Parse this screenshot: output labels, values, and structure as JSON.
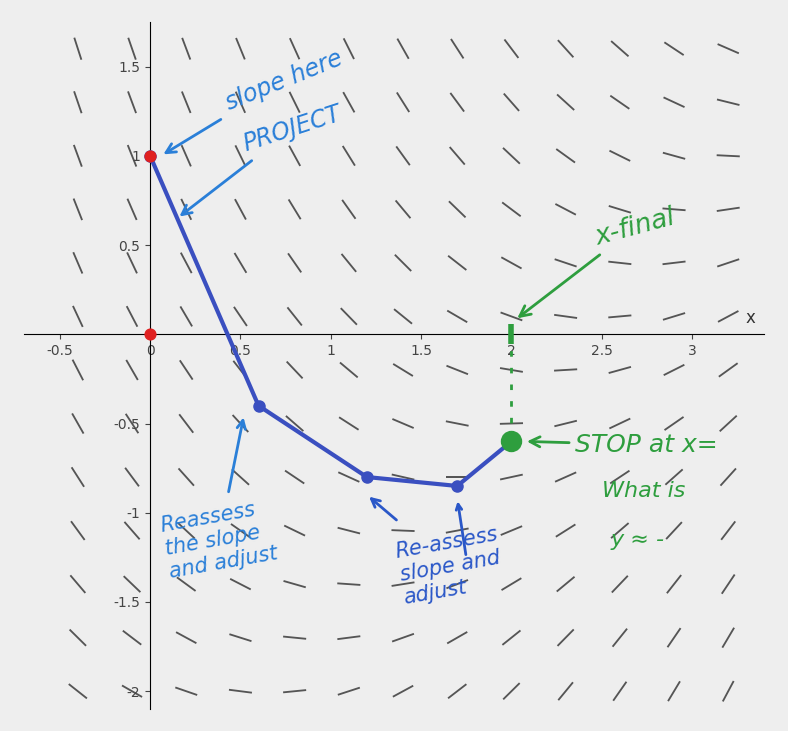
{
  "chart_data": {
    "type": "slope_field",
    "x_label": "x",
    "xlim": [
      -0.7,
      3.4
    ],
    "ylim": [
      -2.1,
      1.75
    ],
    "xticks": [
      -0.5,
      0,
      0.5,
      1,
      1.5,
      2,
      2.5,
      3
    ],
    "yticks": [
      -2,
      -1.5,
      -1,
      -0.5,
      0.5,
      1,
      1.5
    ],
    "grid": false,
    "slope_field": {
      "color": "#555555",
      "x": [
        -0.4,
        -0.1,
        0.2,
        0.5,
        0.8,
        1.1,
        1.4,
        1.7,
        2.0,
        2.3,
        2.6,
        2.9,
        3.2
      ],
      "y": [
        -2.0,
        -1.7,
        -1.4,
        -1.1,
        -0.8,
        -0.5,
        -0.2,
        0.1,
        0.4,
        0.7,
        1.0,
        1.3,
        1.6
      ],
      "slopes": [
        [
          -0.8,
          -0.58,
          -0.35,
          -0.13,
          0.1,
          0.33,
          0.55,
          0.78,
          1.0,
          1.23,
          1.45,
          1.68,
          1.9
        ],
        [
          -1.0,
          -0.77,
          -0.55,
          -0.32,
          -0.1,
          0.13,
          0.36,
          0.58,
          0.81,
          1.03,
          1.26,
          1.48,
          1.71
        ],
        [
          -1.19,
          -0.97,
          -0.74,
          -0.52,
          -0.29,
          -0.07,
          0.16,
          0.39,
          0.61,
          0.84,
          1.06,
          1.29,
          1.51
        ],
        [
          -1.39,
          -1.16,
          -0.94,
          -0.71,
          -0.49,
          -0.26,
          -0.04,
          0.19,
          0.42,
          0.64,
          0.87,
          1.09,
          1.32
        ],
        [
          -1.58,
          -1.36,
          -1.13,
          -0.91,
          -0.68,
          -0.46,
          -0.23,
          0.0,
          0.22,
          0.45,
          0.67,
          0.9,
          1.12
        ],
        [
          -1.78,
          -1.55,
          -1.33,
          -1.1,
          -0.88,
          -0.65,
          -0.43,
          -0.2,
          0.03,
          0.25,
          0.48,
          0.7,
          0.93
        ],
        [
          -1.97,
          -1.75,
          -1.52,
          -1.3,
          -1.07,
          -0.85,
          -0.62,
          -0.4,
          -0.17,
          0.06,
          0.28,
          0.51,
          0.73
        ],
        [
          -2.17,
          -1.94,
          -1.72,
          -1.49,
          -1.27,
          -1.04,
          -0.82,
          -0.59,
          -0.37,
          -0.14,
          0.09,
          0.31,
          0.54
        ],
        [
          -2.36,
          -2.14,
          -1.91,
          -1.69,
          -1.46,
          -1.24,
          -1.01,
          -0.79,
          -0.56,
          -0.34,
          -0.11,
          0.12,
          0.34
        ],
        [
          -2.56,
          -2.33,
          -2.11,
          -1.88,
          -1.66,
          -1.43,
          -1.21,
          -0.98,
          -0.76,
          -0.53,
          -0.31,
          -0.08,
          0.15
        ],
        [
          -2.75,
          -2.53,
          -2.3,
          -2.08,
          -1.85,
          -1.63,
          -1.4,
          -1.18,
          -0.95,
          -0.73,
          -0.5,
          -0.28,
          -0.05
        ],
        [
          -2.95,
          -2.72,
          -2.5,
          -2.27,
          -2.05,
          -1.82,
          -1.6,
          -1.37,
          -1.15,
          -0.92,
          -0.7,
          -0.47,
          -0.25
        ],
        [
          -3.14,
          -2.92,
          -2.69,
          -2.47,
          -2.24,
          -2.02,
          -1.79,
          -1.57,
          -1.34,
          -1.12,
          -0.89,
          -0.67,
          -0.44
        ]
      ]
    },
    "series": [
      {
        "type": "line",
        "color": "#3a4fc0",
        "marker": "circle",
        "x": [
          0,
          0.6,
          1.2,
          1.7,
          2.0
        ],
        "values": [
          1.0,
          -0.4,
          -0.8,
          -0.85,
          -0.6
        ]
      }
    ],
    "points": {
      "color": "#e02020",
      "x": [
        0,
        0
      ],
      "values": [
        1,
        0
      ]
    },
    "x_final": {
      "value": 2,
      "color": "#2e9e3e"
    },
    "annotations": [
      {
        "text": "slope here",
        "color": "#2a7fd8"
      },
      {
        "text": "PROJECT",
        "color": "#2a7fd8"
      },
      {
        "text": "x-final",
        "color": "#2e9e3e"
      },
      {
        "text": "STOP at x=",
        "color": "#2e9e3e"
      },
      {
        "text": "What is",
        "color": "#2e9e3e"
      },
      {
        "text": "y ≈ -",
        "color": "#2e9e3e"
      },
      {
        "text": "Reassess\nthe slope\nand adjust",
        "color": "#2a7fd8"
      },
      {
        "text": "Re-assess\nslope and\nadjust",
        "color": "#2a57c8"
      }
    ]
  }
}
